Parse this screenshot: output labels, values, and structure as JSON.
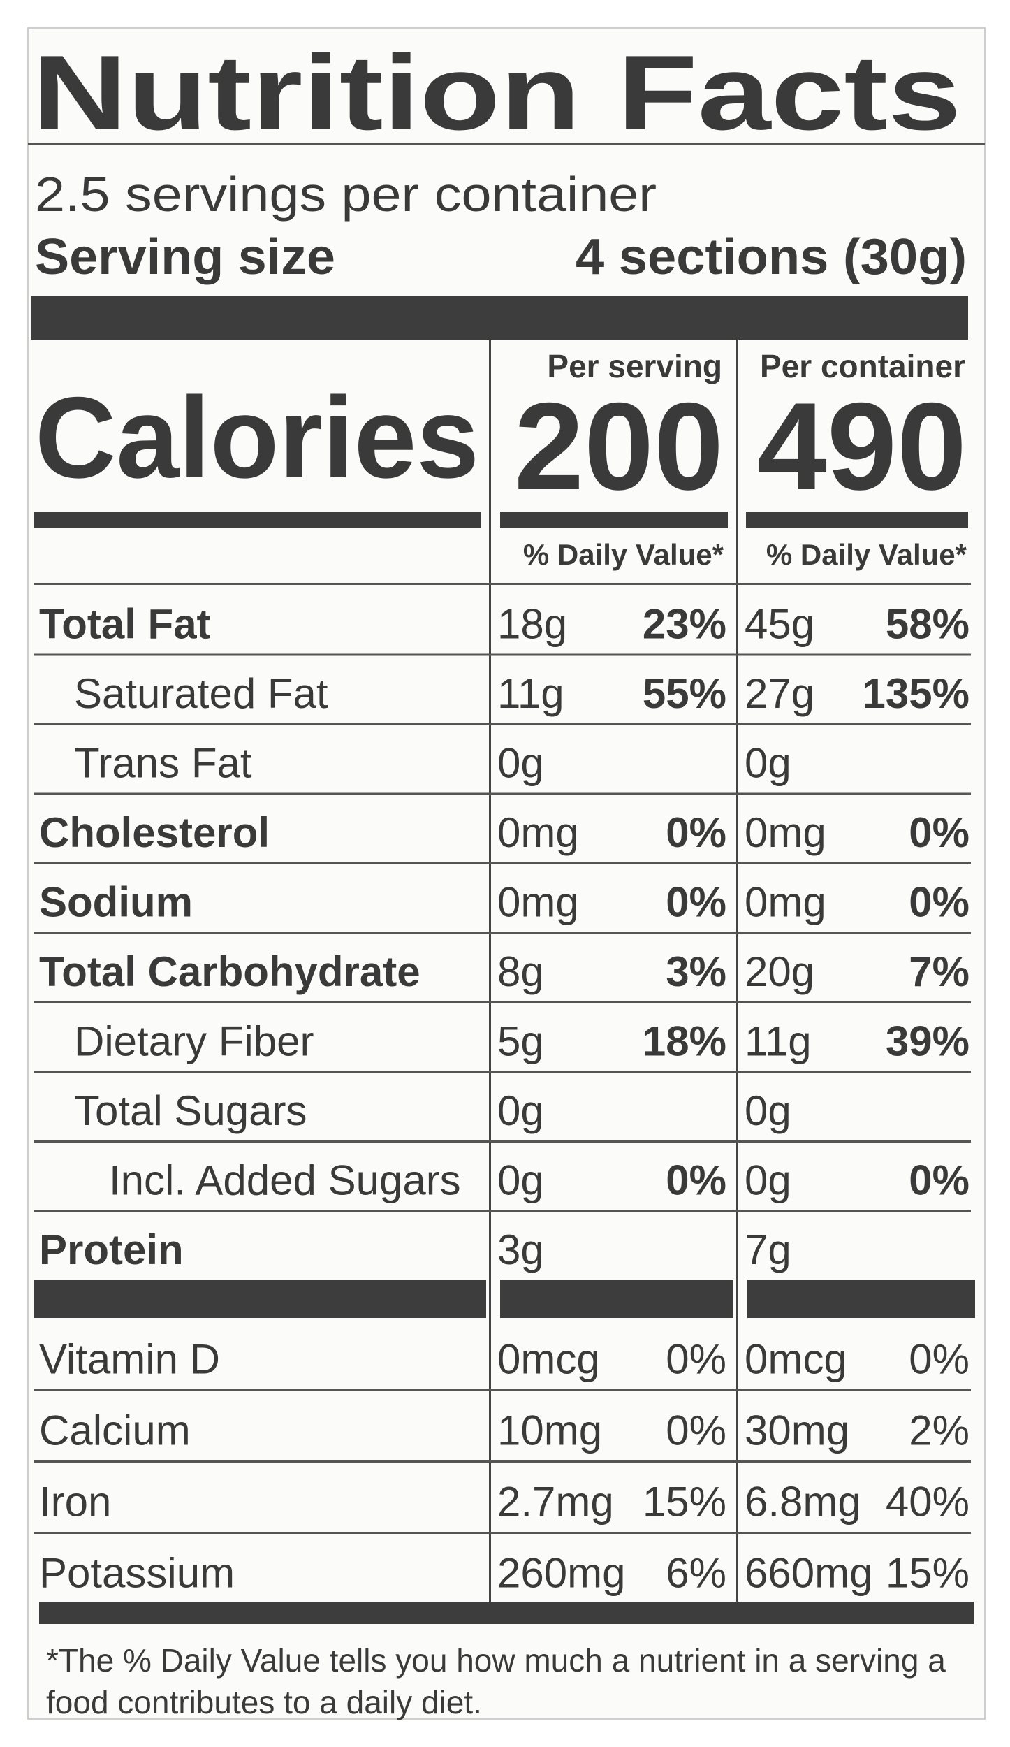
{
  "header": {
    "title": "Nutrition Facts",
    "servings": "2.5 servings per container",
    "serving_size_label": "Serving size",
    "serving_size_value": "4 sections (30g)"
  },
  "calories": {
    "label": "Calories"
  },
  "columns": [
    {
      "heading": "Per serving",
      "calories": "200",
      "daily_value_label": "% Daily Value*"
    },
    {
      "heading": "Per container",
      "calories": "490",
      "daily_value_label": "% Daily Value*"
    }
  ],
  "rows": [
    {
      "name": "Total Fat",
      "cells": [
        [
          "18g",
          "23%"
        ],
        [
          "45g",
          "58%"
        ]
      ]
    },
    {
      "name": "Saturated Fat",
      "cells": [
        [
          "11g",
          "55%"
        ],
        [
          "27g",
          "135%"
        ]
      ]
    },
    {
      "name": "Trans Fat",
      "cells": [
        [
          "0g"
        ],
        [
          "0g"
        ]
      ]
    },
    {
      "name": "Cholesterol",
      "cells": [
        [
          "0mg",
          "0%"
        ],
        [
          "0mg",
          "0%"
        ]
      ]
    },
    {
      "name": "Sodium",
      "cells": [
        [
          "0mg",
          "0%"
        ],
        [
          "0mg",
          "0%"
        ]
      ]
    },
    {
      "name": "Total Carbohydrate",
      "cells": [
        [
          "8g",
          "3%"
        ],
        [
          "20g",
          "7%"
        ]
      ]
    },
    {
      "name": "Dietary Fiber",
      "cells": [
        [
          "5g",
          "18%"
        ],
        [
          "11g",
          "39%"
        ]
      ]
    },
    {
      "name": "Total Sugars",
      "cells": [
        [
          "0g"
        ],
        [
          "0g"
        ]
      ]
    },
    {
      "name": "Incl. Added Sugars",
      "cells": [
        [
          "0g",
          "0%"
        ],
        [
          "0g",
          "0%"
        ]
      ]
    },
    {
      "name": "Protein",
      "cells": [
        [
          "3g"
        ],
        [
          "7g"
        ]
      ]
    }
  ],
  "vitamins": [
    {
      "name": "Vitamin D",
      "cells": [
        [
          "0mcg",
          "0%"
        ],
        [
          "0mcg",
          "0%"
        ]
      ]
    },
    {
      "name": "Calcium",
      "cells": [
        [
          "10mg",
          "0%"
        ],
        [
          "30mg",
          "2%"
        ]
      ]
    },
    {
      "name": "Iron",
      "cells": [
        [
          "2.7mg",
          "15%"
        ],
        [
          "6.8mg",
          "40%"
        ]
      ]
    },
    {
      "name": "Potassium",
      "cells": [
        [
          "260mg",
          "6%"
        ],
        [
          "660mg",
          "15%"
        ]
      ]
    }
  ],
  "footnote": {
    "lines": [
      "*The % Daily Value tells you how much a nutrient in a serving a",
      "food contributes to a daily diet."
    ]
  }
}
